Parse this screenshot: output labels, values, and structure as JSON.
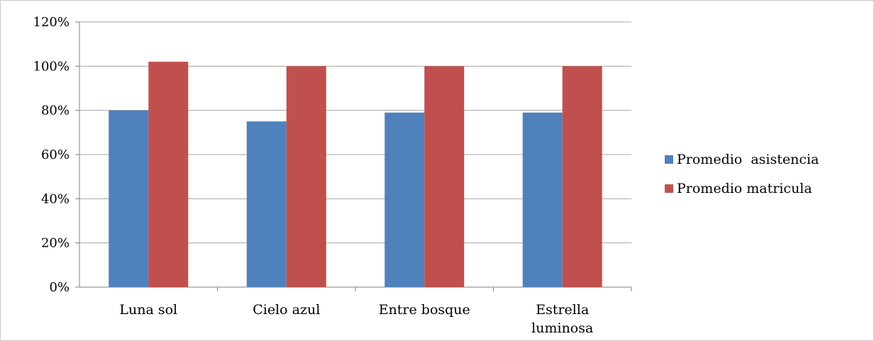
{
  "chart_data": {
    "type": "bar",
    "categories": [
      [
        "Luna sol"
      ],
      [
        "Cielo azul"
      ],
      [
        "Entre bosque"
      ],
      [
        "Estrella",
        "luminosa"
      ]
    ],
    "series": [
      {
        "name": "Promedio  asistencia",
        "color": "#4F81BD",
        "values": [
          80,
          75,
          79,
          79
        ]
      },
      {
        "name": "Promedio matricula",
        "color": "#C0504D",
        "values": [
          102,
          100,
          100,
          100
        ]
      }
    ],
    "y_ticks": [
      "0%",
      "20%",
      "40%",
      "60%",
      "80%",
      "100%",
      "120%"
    ],
    "ylim": [
      0,
      120
    ],
    "y_unit": "%",
    "grid": true,
    "legend_position": "right"
  }
}
